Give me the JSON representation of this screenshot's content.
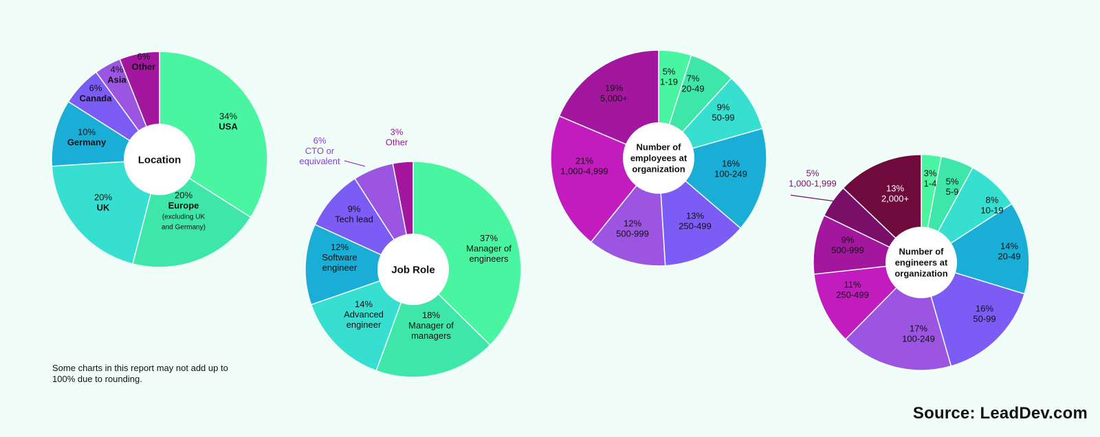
{
  "footnote": "Some charts in this report may not add up to 100% due to rounding.",
  "source": "Source: LeadDev.com",
  "chart_data": [
    {
      "type": "pie",
      "title": "Location",
      "slices": [
        {
          "label": "USA",
          "value": 34,
          "pct": "34%",
          "color": "#4af5a1"
        },
        {
          "label": "Europe",
          "note": "(excluding UK and Germany)",
          "value": 20,
          "pct": "20%",
          "color": "#3ee6a9"
        },
        {
          "label": "UK",
          "value": 20,
          "pct": "20%",
          "color": "#37dfd0"
        },
        {
          "label": "Germany",
          "value": 10,
          "pct": "10%",
          "color": "#1aaed6"
        },
        {
          "label": "Canada",
          "value": 6,
          "pct": "6%",
          "color": "#7b5cf5"
        },
        {
          "label": "Asia",
          "value": 4,
          "pct": "4%",
          "color": "#9c55e0"
        },
        {
          "label": "Other",
          "value": 6,
          "pct": "6%",
          "color": "#a3169e"
        }
      ]
    },
    {
      "type": "pie",
      "title": "Job Role",
      "slices": [
        {
          "label": "Manager of engineers",
          "value": 37,
          "pct": "37%",
          "color": "#4af5a1"
        },
        {
          "label": "Manager of managers",
          "value": 18,
          "pct": "18%",
          "color": "#3ee6a9"
        },
        {
          "label": "Advanced engineer",
          "value": 14,
          "pct": "14%",
          "color": "#37dfd0"
        },
        {
          "label": "Software engineer",
          "value": 12,
          "pct": "12%",
          "color": "#1aaed6"
        },
        {
          "label": "Tech lead",
          "value": 9,
          "pct": "9%",
          "color": "#7b5cf5"
        },
        {
          "label": "CTO or equivalent",
          "value": 6,
          "pct": "6%",
          "color": "#9c55e0"
        },
        {
          "label": "Other",
          "value": 3,
          "pct": "3%",
          "color": "#a3169e"
        }
      ]
    },
    {
      "type": "pie",
      "title": "Number of employees at organization",
      "slices": [
        {
          "label": "1-19",
          "value": 5,
          "pct": "5%",
          "color": "#4af5a1"
        },
        {
          "label": "20-49",
          "value": 7,
          "pct": "7%",
          "color": "#3ee6a9"
        },
        {
          "label": "50-99",
          "value": 9,
          "pct": "9%",
          "color": "#37dfd0"
        },
        {
          "label": "100-249",
          "value": 16,
          "pct": "16%",
          "color": "#1aaed6"
        },
        {
          "label": "250-499",
          "value": 13,
          "pct": "13%",
          "color": "#7b5cf5"
        },
        {
          "label": "500-999",
          "value": 12,
          "pct": "12%",
          "color": "#9c55e0"
        },
        {
          "label": "1,000-4,999",
          "value": 21,
          "pct": "21%",
          "color": "#c21cbf"
        },
        {
          "label": "5,000+",
          "value": 19,
          "pct": "19%",
          "color": "#a3169e"
        }
      ]
    },
    {
      "type": "pie",
      "title": "Number of engineers at organization",
      "slices": [
        {
          "label": "1-4",
          "value": 3,
          "pct": "3%",
          "color": "#4af5a1"
        },
        {
          "label": "5-9",
          "value": 5,
          "pct": "5%",
          "color": "#3ee6a9"
        },
        {
          "label": "10-19",
          "value": 8,
          "pct": "8%",
          "color": "#37dfd0"
        },
        {
          "label": "20-49",
          "value": 14,
          "pct": "14%",
          "color": "#1aaed6"
        },
        {
          "label": "50-99",
          "value": 16,
          "pct": "16%",
          "color": "#7b5cf5"
        },
        {
          "label": "100-249",
          "value": 17,
          "pct": "17%",
          "color": "#9c55e0"
        },
        {
          "label": "250-499",
          "value": 11,
          "pct": "11%",
          "color": "#c21cbf"
        },
        {
          "label": "500-999",
          "value": 9,
          "pct": "9%",
          "color": "#a3169e"
        },
        {
          "label": "1,000-1,999",
          "value": 5,
          "pct": "5%",
          "color": "#7a0f6a"
        },
        {
          "label": "2,000+",
          "value": 13,
          "pct": "13%",
          "color": "#6e0a3c"
        }
      ]
    }
  ]
}
